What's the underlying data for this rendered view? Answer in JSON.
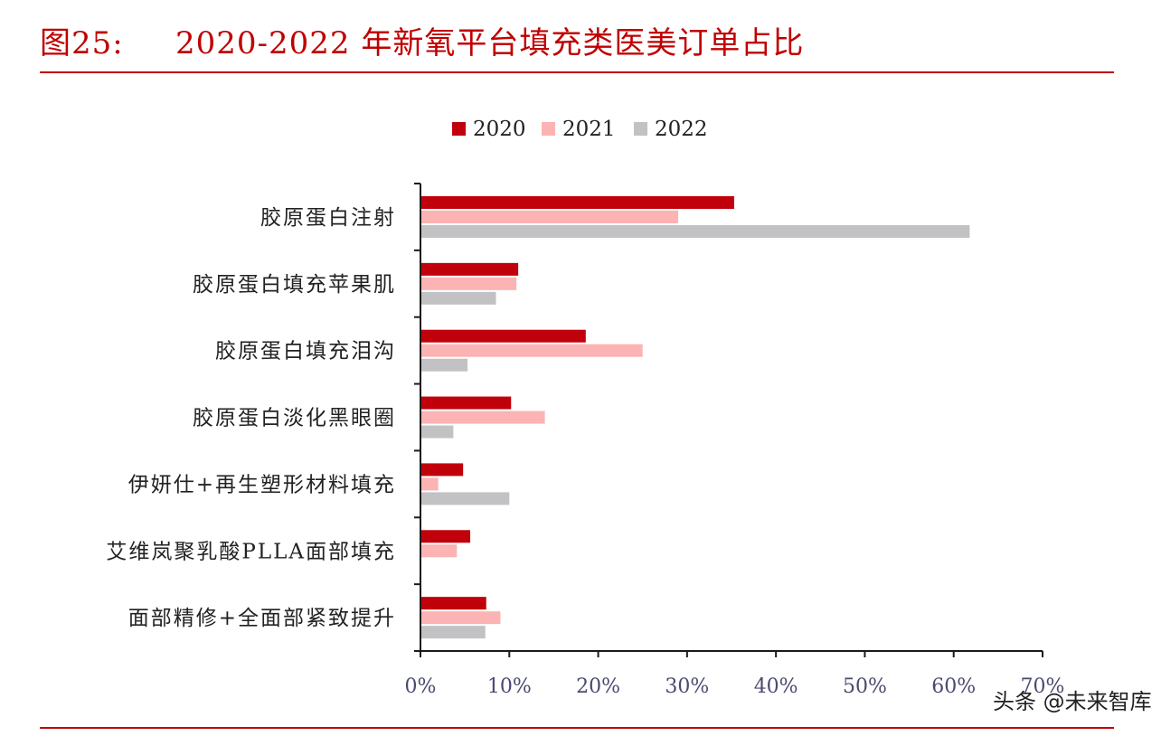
{
  "figure": {
    "label": "图25:",
    "title": "2020-2022 年新氧平台填充类医美订单占比",
    "watermark": "头条 @未来智库"
  },
  "colors": {
    "axis": "#1a1a1a",
    "title": "#c00000",
    "rule": "#c00000"
  },
  "chart_data": {
    "type": "bar",
    "orientation": "horizontal",
    "categories": [
      "胶原蛋白注射",
      "胶原蛋白填充苹果肌",
      "胶原蛋白填充泪沟",
      "胶原蛋白淡化黑眼圈",
      "伊妍仕+再生塑形材料填充",
      "艾维岚聚乳酸PLLA面部填充",
      "面部精修+全面部紧致提升"
    ],
    "series": [
      {
        "name": "2020",
        "color": "#c0000b",
        "values": [
          35.3,
          11.0,
          18.6,
          10.2,
          4.8,
          5.6,
          7.4
        ]
      },
      {
        "name": "2021",
        "color": "#fbb3b3",
        "values": [
          29.0,
          10.8,
          25.0,
          14.0,
          2.0,
          4.1,
          9.0
        ]
      },
      {
        "name": "2022",
        "color": "#c2c2c4",
        "values": [
          61.8,
          8.5,
          5.3,
          3.7,
          10.0,
          null,
          7.3
        ]
      }
    ],
    "xlim": [
      0,
      70
    ],
    "xticks": [
      "0%",
      "10%",
      "20%",
      "30%",
      "40%",
      "50%",
      "60%",
      "70%"
    ],
    "legend_position": "top-center",
    "grid": false
  }
}
